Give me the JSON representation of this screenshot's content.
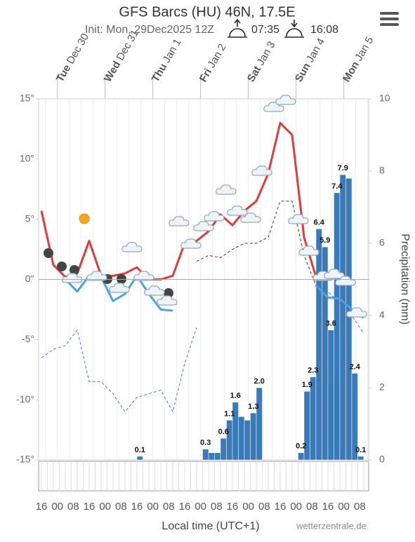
{
  "chart_data": {
    "type": "meteogram",
    "title": "GFS Barcs (HU) 46N, 17.5E",
    "subtitle": "Init: Mon, 29Dec2025 12Z",
    "sunrise": "07:35",
    "sunset": "16:08",
    "days": [
      {
        "day": "Tue",
        "date": "Dec 30"
      },
      {
        "day": "Wed",
        "date": "Dec 31"
      },
      {
        "day": "Thu",
        "date": "Jan 1"
      },
      {
        "day": "Fri",
        "date": "Jan 2"
      },
      {
        "day": "Sat",
        "date": "Jan 3"
      },
      {
        "day": "Sun",
        "date": "Jan 4"
      },
      {
        "day": "Mon",
        "date": "Jan 5"
      }
    ],
    "xtick_labels": [
      "16",
      "00",
      "08",
      "16",
      "00",
      "08",
      "16",
      "00",
      "08",
      "16",
      "00",
      "08",
      "16",
      "00",
      "08",
      "16",
      "00",
      "08",
      "16",
      "00",
      "08"
    ],
    "x_label": "Local time (UTC+1)",
    "y2_label": "Precipitation (mm)",
    "credit": "wetterzentrale.de",
    "ylim": [
      -15,
      15
    ],
    "yticks": [
      {
        "value": 15,
        "label": "15°"
      },
      {
        "value": 10,
        "label": "10°"
      },
      {
        "value": 5,
        "label": "5°"
      },
      {
        "value": 0,
        "label": "0°"
      },
      {
        "value": -5,
        "label": "-5°"
      },
      {
        "value": -10,
        "label": "-10°"
      },
      {
        "value": -15,
        "label": "-15°"
      }
    ],
    "y2lim": [
      0,
      10
    ],
    "y2ticks": [
      0,
      2,
      4,
      6,
      8,
      10
    ],
    "series": [
      {
        "color": "#e03a3a",
        "dash": false,
        "values": [
          5.7,
          1.2,
          0.2,
          0.5,
          3.2,
          0.3,
          0.3,
          0.5,
          1,
          0,
          0,
          0.3,
          3,
          3.2,
          4,
          5.4,
          4.5,
          5.7,
          6.5,
          8.8,
          13,
          12,
          3.5,
          0.2,
          null,
          null,
          null,
          null
        ]
      },
      {
        "color": "#4aa3df",
        "dash": false,
        "values": [
          null,
          null,
          0,
          -1,
          0.3,
          0.2,
          -1.8,
          -1.2,
          0.3,
          -1.2,
          -2.5,
          -2.6,
          null,
          null,
          null,
          null,
          null,
          null,
          null,
          null,
          null,
          null,
          null,
          -0.5,
          -1.5,
          -1.6,
          -2.5,
          -3.2
        ]
      },
      {
        "color": "#7a1f1f",
        "dash": true,
        "values": [
          null,
          null,
          null,
          null,
          null,
          null,
          null,
          null,
          null,
          null,
          null,
          null,
          null,
          1.5,
          2,
          1.8,
          2.5,
          3,
          3,
          3.5,
          6.5,
          6.5,
          2,
          -0.5,
          null,
          null,
          null,
          null
        ]
      },
      {
        "color": "#3d7fc0",
        "dash": true,
        "values": [
          -6.5,
          -5.8,
          -5.5,
          -4.2,
          -8.5,
          -8.5,
          -9.5,
          -11,
          -9.8,
          -9.5,
          -9.2,
          -11,
          -7,
          -4,
          null,
          null,
          null,
          null,
          null,
          null,
          null,
          null,
          null,
          -0.5,
          -1,
          -2,
          -3,
          -4.5
        ]
      }
    ],
    "precip": {
      "color": "#3a7ab8",
      "axis": "y2",
      "values": [
        0,
        0,
        0,
        0,
        0,
        0,
        0,
        0,
        0,
        0,
        0,
        0,
        0,
        0,
        0,
        0,
        0.1,
        0,
        0,
        0,
        0,
        0,
        0,
        0,
        0,
        0,
        0,
        0.3,
        0.2,
        0.2,
        0.6,
        1.1,
        1.6,
        1.2,
        1.1,
        1.3,
        2.0,
        0,
        0,
        0,
        0,
        0,
        0,
        0.2,
        1.9,
        2.3,
        6.4,
        5.9,
        3.6,
        7.4,
        7.9,
        7.8,
        2.4,
        0.1,
        0
      ],
      "value_labels": [
        null,
        null,
        null,
        null,
        null,
        null,
        null,
        null,
        null,
        null,
        null,
        null,
        null,
        null,
        null,
        null,
        "0.1",
        null,
        null,
        null,
        null,
        null,
        null,
        null,
        null,
        null,
        null,
        "0.3",
        null,
        null,
        "0.6",
        "1.1",
        "1.6",
        null,
        null,
        "1.3",
        "2.0",
        null,
        null,
        null,
        null,
        null,
        null,
        "0.2",
        "1.9",
        "2.3",
        "6.4",
        "5.9",
        "3.6",
        "7.4",
        "7.9",
        null,
        "2.4",
        "0.1",
        null
      ]
    }
  }
}
